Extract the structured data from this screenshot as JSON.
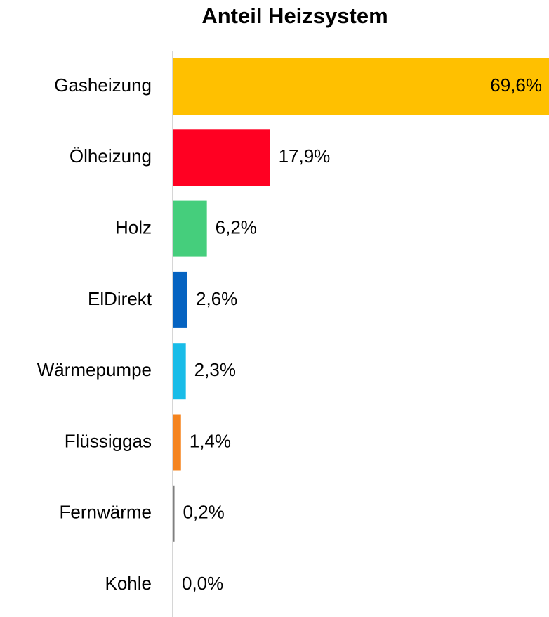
{
  "chart_data": {
    "type": "bar",
    "orientation": "horizontal",
    "title": "Anteil Heizsystem",
    "categories": [
      "Gasheizung",
      "Ölheizung",
      "Holz",
      "ElDirekt",
      "Wärmepumpe",
      "Flüssiggas",
      "Fernwärme",
      "Kohle"
    ],
    "values": [
      69.6,
      17.9,
      6.2,
      2.6,
      2.3,
      1.4,
      0.2,
      0.0
    ],
    "value_labels": [
      "69,6%",
      "17,9%",
      "6,2%",
      "2,6%",
      "2,3%",
      "1,4%",
      "0,2%",
      "0,0%"
    ],
    "colors": [
      "#FFC000",
      "#FF0022",
      "#45CE7C",
      "#0563C1",
      "#19BCE8",
      "#F5841F",
      "#7F7F7F",
      "#404040"
    ]
  }
}
